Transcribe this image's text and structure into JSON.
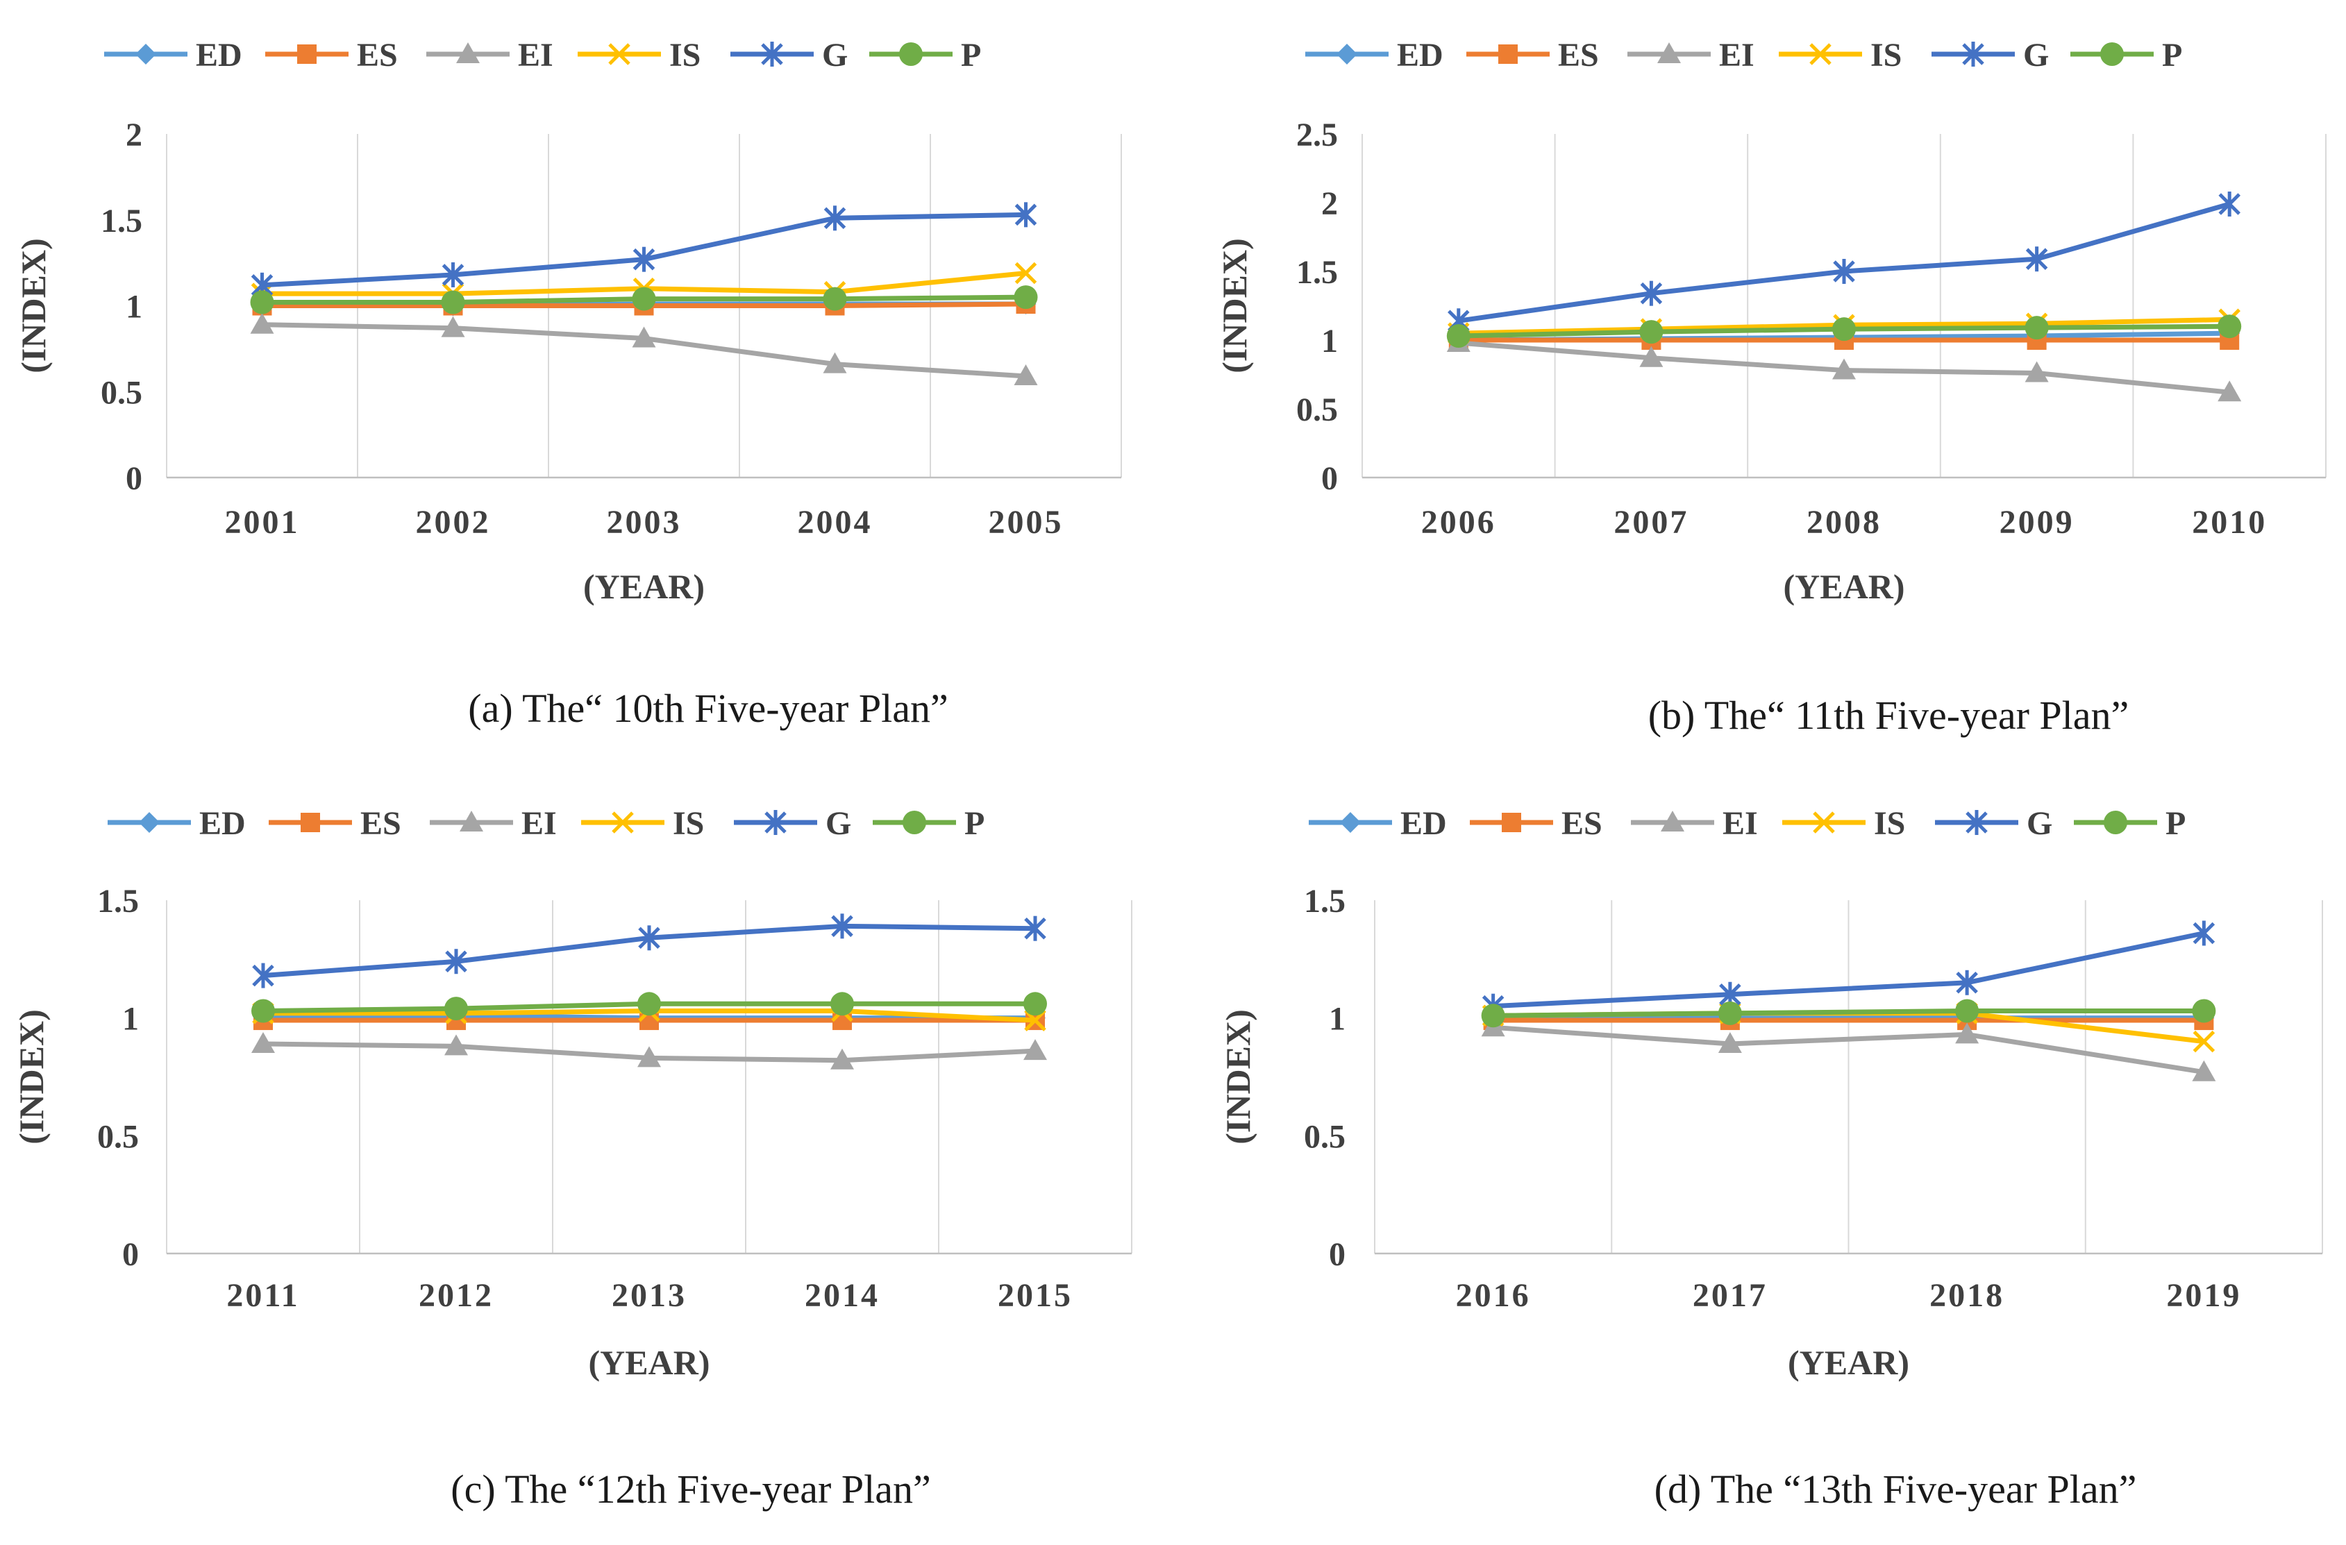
{
  "colors": {
    "ED": "#5B9BD5",
    "ES": "#ED7D31",
    "EI": "#A5A5A5",
    "IS": "#FFC000",
    "G": "#4472C4",
    "P": "#70AD47"
  },
  "chart_data": [
    {
      "type": "line",
      "panel": "a",
      "caption": "(a)  The“ 10th Five-year Plan”",
      "xlabel": "(YEAR)",
      "ylabel": "(INDEX)",
      "categories": [
        "2001",
        "2002",
        "2003",
        "2004",
        "2005"
      ],
      "ylim": [
        0,
        2
      ],
      "yticks": [
        0,
        0.5,
        1,
        1.5,
        2
      ],
      "ytick_labels": [
        "0",
        "0.5",
        "1",
        "1.5",
        "2"
      ],
      "grid": "vertical",
      "legend": "top",
      "series": [
        {
          "name": "ED",
          "values": [
            1.0,
            1.0,
            1.01,
            1.01,
            1.01
          ]
        },
        {
          "name": "ES",
          "values": [
            1.0,
            1.0,
            1.0,
            1.0,
            1.01
          ]
        },
        {
          "name": "EI",
          "values": [
            0.89,
            0.87,
            0.81,
            0.66,
            0.59
          ]
        },
        {
          "name": "IS",
          "values": [
            1.07,
            1.07,
            1.1,
            1.08,
            1.19
          ]
        },
        {
          "name": "G",
          "values": [
            1.12,
            1.18,
            1.27,
            1.51,
            1.53
          ]
        },
        {
          "name": "P",
          "values": [
            1.02,
            1.02,
            1.04,
            1.04,
            1.05
          ]
        }
      ]
    },
    {
      "type": "line",
      "panel": "b",
      "caption": "(b)  The“ 11th Five-year Plan”",
      "xlabel": "(YEAR)",
      "ylabel": "(INDEX)",
      "categories": [
        "2006",
        "2007",
        "2008",
        "2009",
        "2010"
      ],
      "ylim": [
        0,
        2.5
      ],
      "yticks": [
        0,
        0.5,
        1,
        1.5,
        2,
        2.5
      ],
      "ytick_labels": [
        "0",
        "0.5",
        "1",
        "1.5",
        "2",
        "2.5"
      ],
      "grid": "vertical",
      "legend": "top",
      "series": [
        {
          "name": "ED",
          "values": [
            1.0,
            1.01,
            1.02,
            1.03,
            1.05
          ]
        },
        {
          "name": "ES",
          "values": [
            1.0,
            1.0,
            1.0,
            1.0,
            1.0
          ]
        },
        {
          "name": "EI",
          "values": [
            0.98,
            0.87,
            0.78,
            0.76,
            0.62
          ]
        },
        {
          "name": "IS",
          "values": [
            1.05,
            1.08,
            1.11,
            1.12,
            1.15
          ]
        },
        {
          "name": "G",
          "values": [
            1.14,
            1.34,
            1.5,
            1.59,
            1.99
          ]
        },
        {
          "name": "P",
          "values": [
            1.03,
            1.06,
            1.08,
            1.09,
            1.1
          ]
        }
      ]
    },
    {
      "type": "line",
      "panel": "c",
      "caption": "(c) The “12th Five-year Plan”",
      "xlabel": "(YEAR)",
      "ylabel": "(INDEX)",
      "categories": [
        "2011",
        "2012",
        "2013",
        "2014",
        "2015"
      ],
      "ylim": [
        0,
        1.5
      ],
      "yticks": [
        0,
        0.5,
        1,
        1.5
      ],
      "ytick_labels": [
        "0",
        "0.5",
        "1",
        "1.5"
      ],
      "grid": "vertical",
      "legend": "top",
      "series": [
        {
          "name": "ED",
          "values": [
            1.01,
            1.01,
            1.0,
            1.0,
            1.0
          ]
        },
        {
          "name": "ES",
          "values": [
            0.99,
            0.99,
            0.99,
            0.99,
            0.99
          ]
        },
        {
          "name": "EI",
          "values": [
            0.89,
            0.88,
            0.83,
            0.82,
            0.86
          ]
        },
        {
          "name": "IS",
          "values": [
            1.02,
            1.02,
            1.03,
            1.03,
            0.99
          ]
        },
        {
          "name": "G",
          "values": [
            1.18,
            1.24,
            1.34,
            1.39,
            1.38
          ]
        },
        {
          "name": "P",
          "values": [
            1.03,
            1.04,
            1.06,
            1.06,
            1.06
          ]
        }
      ]
    },
    {
      "type": "line",
      "panel": "d",
      "caption": "(d) The “13th Five-year Plan”",
      "xlabel": "(YEAR)",
      "ylabel": "(INDEX)",
      "categories": [
        "2016",
        "2017",
        "2018",
        "2019"
      ],
      "ylim": [
        0,
        1.5
      ],
      "yticks": [
        0,
        0.5,
        1,
        1.5
      ],
      "ytick_labels": [
        "0",
        "0.5",
        "1",
        "1.5"
      ],
      "grid": "vertical",
      "legend": "top",
      "series": [
        {
          "name": "ED",
          "values": [
            1.0,
            1.0,
            1.0,
            1.0
          ]
        },
        {
          "name": "ES",
          "values": [
            0.99,
            0.99,
            0.99,
            0.99
          ]
        },
        {
          "name": "EI",
          "values": [
            0.96,
            0.89,
            0.93,
            0.77
          ]
        },
        {
          "name": "IS",
          "values": [
            1.01,
            1.02,
            1.02,
            0.9
          ]
        },
        {
          "name": "G",
          "values": [
            1.05,
            1.1,
            1.15,
            1.36
          ]
        },
        {
          "name": "P",
          "values": [
            1.01,
            1.02,
            1.03,
            1.03
          ]
        }
      ]
    }
  ]
}
